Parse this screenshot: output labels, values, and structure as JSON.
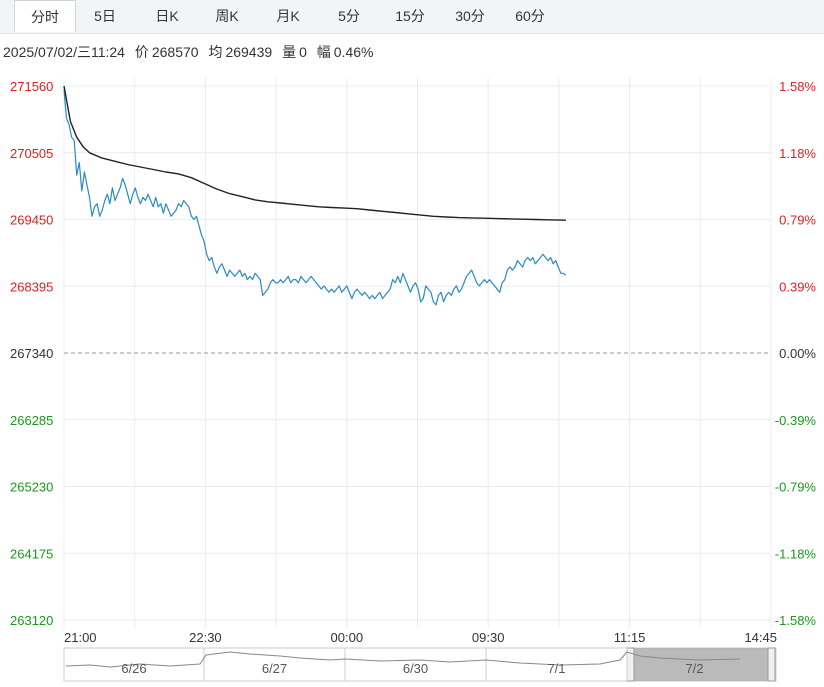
{
  "tabs": [
    {
      "label": "分时",
      "active": true
    },
    {
      "label": "5日"
    },
    {
      "label": "日K"
    },
    {
      "label": "周K"
    },
    {
      "label": "月K"
    },
    {
      "label": "5分"
    },
    {
      "label": "15分"
    },
    {
      "label": "30分"
    },
    {
      "label": "60分"
    }
  ],
  "info": {
    "datetime": "2025/07/02/三11:24",
    "price_label": "价",
    "price": "268570",
    "avg_label": "均",
    "avg": "269439",
    "vol_label": "量",
    "vol": "0",
    "chg_label": "幅",
    "chg": "0.46%"
  },
  "colors": {
    "up": "#e02020",
    "down": "#1a9a1a",
    "price_line": "#2a8ac4",
    "avg_line": "#222222",
    "grid": "#e9ecef"
  },
  "chart_data": {
    "type": "line",
    "y_ticks": [
      "271560",
      "270505",
      "269450",
      "268395",
      "267340",
      "266285",
      "265230",
      "264175",
      "263120"
    ],
    "y_tick_values": [
      271560,
      270505,
      269450,
      268395,
      267340,
      266285,
      265230,
      264175,
      263120
    ],
    "pct_ticks": [
      "1.58%",
      "1.18%",
      "0.79%",
      "0.39%",
      "0.00%",
      "-0.39%",
      "-0.79%",
      "-1.18%",
      "-1.58%"
    ],
    "ylim": [
      263120,
      271560
    ],
    "base": 267340,
    "x_ticks": [
      "21:00",
      "22:30",
      "00:00",
      "09:30",
      "11:15",
      "14:45"
    ],
    "session_slots": 555,
    "series": [
      {
        "values": [
          [
            0,
            271500
          ],
          [
            2,
            271050
          ],
          [
            4,
            270950
          ],
          [
            6,
            270750
          ],
          [
            8,
            270700
          ],
          [
            10,
            270150
          ],
          [
            12,
            270350
          ],
          [
            14,
            269900
          ],
          [
            16,
            270200
          ],
          [
            18,
            270000
          ],
          [
            20,
            269800
          ],
          [
            22,
            269500
          ],
          [
            24,
            269650
          ],
          [
            26,
            269700
          ],
          [
            28,
            269500
          ],
          [
            30,
            269600
          ],
          [
            32,
            269750
          ],
          [
            34,
            269850
          ],
          [
            36,
            269700
          ],
          [
            38,
            269950
          ],
          [
            40,
            269750
          ],
          [
            42,
            269850
          ],
          [
            44,
            269950
          ],
          [
            46,
            270100
          ],
          [
            48,
            270000
          ],
          [
            50,
            269850
          ],
          [
            52,
            269700
          ],
          [
            54,
            269850
          ],
          [
            56,
            269950
          ],
          [
            58,
            269800
          ],
          [
            60,
            269700
          ],
          [
            62,
            269800
          ],
          [
            64,
            269750
          ],
          [
            66,
            269850
          ],
          [
            68,
            269750
          ],
          [
            70,
            269650
          ],
          [
            72,
            269800
          ],
          [
            74,
            269650
          ],
          [
            76,
            269700
          ],
          [
            78,
            269550
          ],
          [
            80,
            269700
          ],
          [
            82,
            269600
          ],
          [
            84,
            269500
          ],
          [
            86,
            269550
          ],
          [
            88,
            269600
          ],
          [
            90,
            269700
          ],
          [
            92,
            269650
          ],
          [
            94,
            269750
          ],
          [
            96,
            269700
          ],
          [
            98,
            269650
          ],
          [
            100,
            269500
          ],
          [
            102,
            269450
          ],
          [
            104,
            269500
          ],
          [
            106,
            269350
          ],
          [
            108,
            269200
          ],
          [
            110,
            269100
          ],
          [
            112,
            268900
          ],
          [
            114,
            268800
          ],
          [
            116,
            268850
          ],
          [
            118,
            268700
          ],
          [
            120,
            268600
          ],
          [
            122,
            268700
          ],
          [
            124,
            268750
          ],
          [
            126,
            268650
          ],
          [
            128,
            268550
          ],
          [
            130,
            268650
          ],
          [
            132,
            268600
          ],
          [
            134,
            268550
          ],
          [
            136,
            268600
          ],
          [
            138,
            268650
          ],
          [
            140,
            268550
          ],
          [
            142,
            268600
          ],
          [
            144,
            268500
          ],
          [
            146,
            268550
          ],
          [
            148,
            268500
          ],
          [
            150,
            268600
          ],
          [
            152,
            268550
          ],
          [
            154,
            268500
          ],
          [
            156,
            268250
          ],
          [
            158,
            268300
          ],
          [
            160,
            268350
          ],
          [
            162,
            268450
          ],
          [
            164,
            268500
          ],
          [
            166,
            268450
          ],
          [
            168,
            268450
          ],
          [
            170,
            268500
          ],
          [
            172,
            268450
          ],
          [
            174,
            268500
          ],
          [
            176,
            268550
          ],
          [
            178,
            268450
          ],
          [
            180,
            268500
          ],
          [
            182,
            268500
          ],
          [
            184,
            268450
          ],
          [
            186,
            268550
          ],
          [
            188,
            268500
          ],
          [
            190,
            268450
          ],
          [
            192,
            268500
          ],
          [
            194,
            268550
          ],
          [
            196,
            268500
          ],
          [
            198,
            268450
          ],
          [
            200,
            268400
          ],
          [
            202,
            268350
          ],
          [
            204,
            268400
          ],
          [
            206,
            268350
          ],
          [
            208,
            268300
          ],
          [
            210,
            268350
          ],
          [
            212,
            268300
          ],
          [
            214,
            268350
          ],
          [
            216,
            268400
          ],
          [
            218,
            268300
          ],
          [
            220,
            268350
          ],
          [
            222,
            268400
          ],
          [
            224,
            268300
          ],
          [
            226,
            268200
          ],
          [
            228,
            268300
          ],
          [
            230,
            268350
          ],
          [
            232,
            268300
          ],
          [
            234,
            268250
          ],
          [
            236,
            268300
          ],
          [
            238,
            268250
          ],
          [
            240,
            268200
          ],
          [
            242,
            268250
          ],
          [
            244,
            268200
          ],
          [
            246,
            268250
          ],
          [
            248,
            268300
          ],
          [
            250,
            268200
          ],
          [
            252,
            268250
          ],
          [
            254,
            268300
          ],
          [
            256,
            268350
          ],
          [
            258,
            268500
          ],
          [
            260,
            268450
          ],
          [
            262,
            268550
          ],
          [
            264,
            268450
          ],
          [
            266,
            268600
          ],
          [
            268,
            268500
          ],
          [
            270,
            268400
          ],
          [
            272,
            268300
          ],
          [
            274,
            268400
          ],
          [
            276,
            268450
          ],
          [
            278,
            268350
          ],
          [
            280,
            268150
          ],
          [
            282,
            268200
          ],
          [
            284,
            268400
          ],
          [
            286,
            268350
          ],
          [
            288,
            268300
          ],
          [
            290,
            268150
          ],
          [
            292,
            268100
          ],
          [
            294,
            268250
          ],
          [
            296,
            268300
          ],
          [
            298,
            268150
          ],
          [
            300,
            268250
          ],
          [
            302,
            268300
          ],
          [
            304,
            268250
          ],
          [
            306,
            268350
          ],
          [
            308,
            268400
          ],
          [
            310,
            268300
          ],
          [
            312,
            268350
          ],
          [
            314,
            268450
          ],
          [
            316,
            268550
          ],
          [
            318,
            268600
          ],
          [
            320,
            268650
          ],
          [
            322,
            268550
          ],
          [
            324,
            268450
          ],
          [
            326,
            268400
          ],
          [
            328,
            268450
          ],
          [
            330,
            268500
          ],
          [
            332,
            268450
          ],
          [
            334,
            268500
          ],
          [
            336,
            268450
          ],
          [
            338,
            268400
          ],
          [
            340,
            268350
          ],
          [
            342,
            268300
          ],
          [
            344,
            268450
          ],
          [
            346,
            268500
          ],
          [
            348,
            268650
          ],
          [
            350,
            268700
          ],
          [
            352,
            268650
          ],
          [
            354,
            268700
          ],
          [
            356,
            268800
          ],
          [
            358,
            268750
          ],
          [
            360,
            268700
          ],
          [
            362,
            268800
          ],
          [
            364,
            268850
          ],
          [
            366,
            268800
          ],
          [
            368,
            268850
          ],
          [
            370,
            268750
          ],
          [
            372,
            268800
          ],
          [
            374,
            268850
          ],
          [
            376,
            268900
          ],
          [
            378,
            268850
          ],
          [
            380,
            268800
          ],
          [
            382,
            268850
          ],
          [
            384,
            268750
          ],
          [
            386,
            268800
          ],
          [
            388,
            268700
          ],
          [
            390,
            268600
          ],
          [
            392,
            268600
          ],
          [
            394,
            268570
          ]
        ]
      },
      {
        "values": [
          [
            0,
            271560
          ],
          [
            5,
            271000
          ],
          [
            10,
            270750
          ],
          [
            15,
            270600
          ],
          [
            20,
            270505
          ],
          [
            30,
            270420
          ],
          [
            40,
            270370
          ],
          [
            50,
            270320
          ],
          [
            60,
            270280
          ],
          [
            70,
            270240
          ],
          [
            80,
            270200
          ],
          [
            90,
            270170
          ],
          [
            100,
            270110
          ],
          [
            110,
            270020
          ],
          [
            120,
            269930
          ],
          [
            130,
            269860
          ],
          [
            140,
            269810
          ],
          [
            150,
            269760
          ],
          [
            160,
            269730
          ],
          [
            170,
            269710
          ],
          [
            180,
            269690
          ],
          [
            190,
            269670
          ],
          [
            200,
            269650
          ],
          [
            210,
            269640
          ],
          [
            220,
            269630
          ],
          [
            230,
            269620
          ],
          [
            240,
            269600
          ],
          [
            250,
            269580
          ],
          [
            260,
            269560
          ],
          [
            270,
            269540
          ],
          [
            280,
            269520
          ],
          [
            290,
            269500
          ],
          [
            300,
            269490
          ],
          [
            310,
            269480
          ],
          [
            320,
            269475
          ],
          [
            330,
            269470
          ],
          [
            340,
            269465
          ],
          [
            350,
            269460
          ],
          [
            360,
            269455
          ],
          [
            370,
            269450
          ],
          [
            380,
            269445
          ],
          [
            390,
            269440
          ],
          [
            394,
            269439
          ]
        ]
      }
    ]
  },
  "navigator": {
    "labels": [
      "6/26",
      "6/27",
      "6/30",
      "7/1",
      "7/2"
    ]
  }
}
